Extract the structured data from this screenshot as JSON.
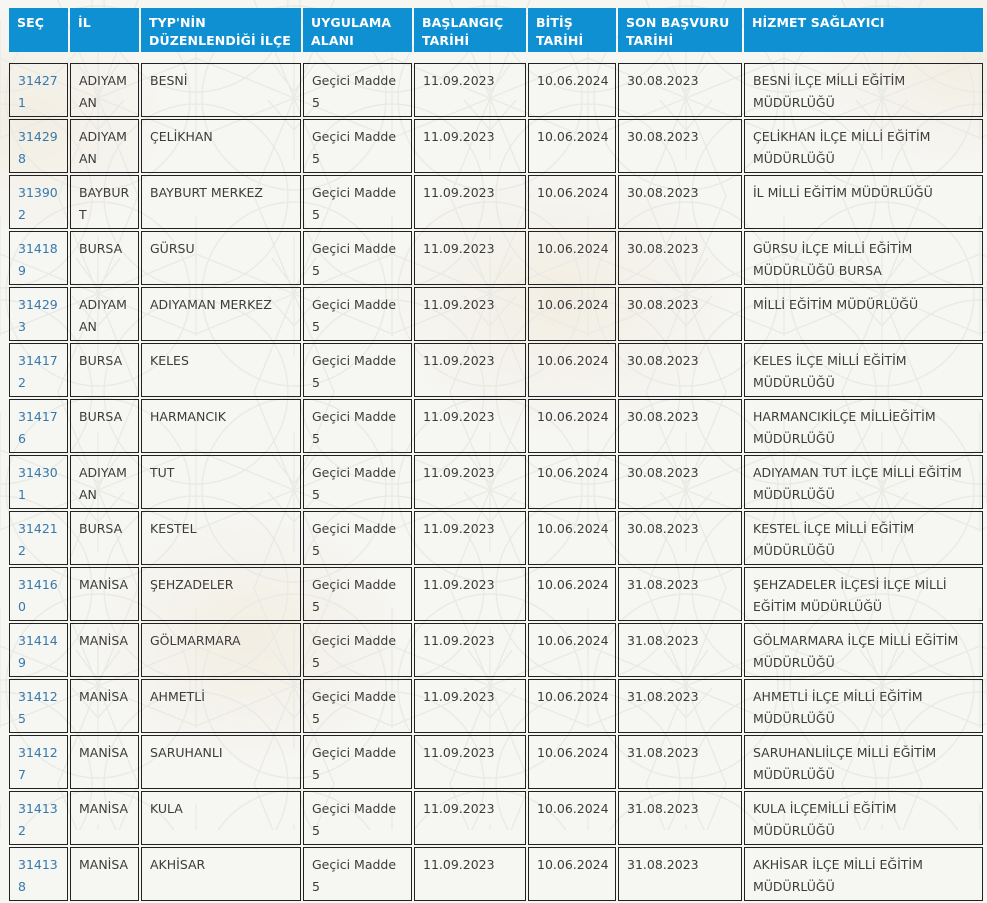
{
  "table": {
    "columns": [
      {
        "key": "sec",
        "label": "SEÇ"
      },
      {
        "key": "il",
        "label": "İL"
      },
      {
        "key": "ilce",
        "label": "TYP'NİN DÜZENLENDİĞİ İLÇE"
      },
      {
        "key": "alan",
        "label": "UYGULAMA ALANI"
      },
      {
        "key": "baslangic",
        "label": "BAŞLANGIÇ TARİHİ"
      },
      {
        "key": "bitis",
        "label": "BİTİŞ TARİHİ"
      },
      {
        "key": "son_basvuru",
        "label": "SON BAŞVURU TARİHİ"
      },
      {
        "key": "hizmet",
        "label": "HİZMET SAĞLAYICI"
      }
    ],
    "rows": [
      {
        "sec": "314271",
        "il": "ADIYAMAN",
        "ilce": "BESNİ",
        "alan": "Geçici Madde 5",
        "baslangic": "11.09.2023",
        "bitis": "10.06.2024",
        "son_basvuru": "30.08.2023",
        "hizmet": "BESNİ İLÇE MİLLİ EĞİTİM MÜDÜRLÜĞÜ"
      },
      {
        "sec": "314298",
        "il": "ADIYAMAN",
        "ilce": "ÇELİKHAN",
        "alan": "Geçici Madde 5",
        "baslangic": "11.09.2023",
        "bitis": "10.06.2024",
        "son_basvuru": "30.08.2023",
        "hizmet": "ÇELİKHAN İLÇE MİLLİ EĞİTİM MÜDÜRLÜĞÜ"
      },
      {
        "sec": "313902",
        "il": "BAYBURT",
        "ilce": "BAYBURT MERKEZ",
        "alan": "Geçici Madde 5",
        "baslangic": "11.09.2023",
        "bitis": "10.06.2024",
        "son_basvuru": "30.08.2023",
        "hizmet": "İL MİLLİ EĞİTİM MÜDÜRLÜĞÜ"
      },
      {
        "sec": "314189",
        "il": "BURSA",
        "ilce": "GÜRSU",
        "alan": "Geçici Madde 5",
        "baslangic": "11.09.2023",
        "bitis": "10.06.2024",
        "son_basvuru": "30.08.2023",
        "hizmet": "GÜRSU İLÇE MİLLİ EĞİTİM MÜDÜRLÜĞÜ BURSA"
      },
      {
        "sec": "314293",
        "il": "ADIYAMAN",
        "ilce": "ADIYAMAN MERKEZ",
        "alan": "Geçici Madde 5",
        "baslangic": "11.09.2023",
        "bitis": "10.06.2024",
        "son_basvuru": "30.08.2023",
        "hizmet": "MİLLİ EĞİTİM MÜDÜRLÜĞÜ"
      },
      {
        "sec": "314172",
        "il": "BURSA",
        "ilce": "KELES",
        "alan": "Geçici Madde 5",
        "baslangic": "11.09.2023",
        "bitis": "10.06.2024",
        "son_basvuru": "30.08.2023",
        "hizmet": "KELES İLÇE MİLLİ EĞİTİM MÜDÜRLÜĞÜ"
      },
      {
        "sec": "314176",
        "il": "BURSA",
        "ilce": "HARMANCIK",
        "alan": "Geçici Madde 5",
        "baslangic": "11.09.2023",
        "bitis": "10.06.2024",
        "son_basvuru": "30.08.2023",
        "hizmet": "HARMANCIKİLÇE MİLLİEĞİTİM MÜDÜRLÜĞÜ"
      },
      {
        "sec": "314301",
        "il": "ADIYAMAN",
        "ilce": "TUT",
        "alan": "Geçici Madde 5",
        "baslangic": "11.09.2023",
        "bitis": "10.06.2024",
        "son_basvuru": "30.08.2023",
        "hizmet": "ADIYAMAN TUT İLÇE MİLLİ EĞİTİM MÜDÜRLÜĞÜ"
      },
      {
        "sec": "314212",
        "il": "BURSA",
        "ilce": "KESTEL",
        "alan": "Geçici Madde 5",
        "baslangic": "11.09.2023",
        "bitis": "10.06.2024",
        "son_basvuru": "30.08.2023",
        "hizmet": "KESTEL İLÇE MİLLİ EĞİTİM MÜDÜRLÜĞÜ"
      },
      {
        "sec": "314160",
        "il": "MANİSA",
        "ilce": "ŞEHZADELER",
        "alan": "Geçici Madde 5",
        "baslangic": "11.09.2023",
        "bitis": "10.06.2024",
        "son_basvuru": "31.08.2023",
        "hizmet": "ŞEHZADELER İLÇESİ İLÇE MİLLİ EĞİTİM MÜDÜRLÜĞÜ"
      },
      {
        "sec": "314149",
        "il": "MANİSA",
        "ilce": "GÖLMARMARA",
        "alan": "Geçici Madde 5",
        "baslangic": "11.09.2023",
        "bitis": "10.06.2024",
        "son_basvuru": "31.08.2023",
        "hizmet": "GÖLMARMARA İLÇE MİLLİ EĞİTİM MÜDÜRLÜĞÜ"
      },
      {
        "sec": "314125",
        "il": "MANİSA",
        "ilce": "AHMETLİ",
        "alan": "Geçici Madde 5",
        "baslangic": "11.09.2023",
        "bitis": "10.06.2024",
        "son_basvuru": "31.08.2023",
        "hizmet": "AHMETLİ İLÇE MİLLİ EĞİTİM MÜDÜRLÜĞÜ"
      },
      {
        "sec": "314127",
        "il": "MANİSA",
        "ilce": "SARUHANLI",
        "alan": "Geçici Madde 5",
        "baslangic": "11.09.2023",
        "bitis": "10.06.2024",
        "son_basvuru": "31.08.2023",
        "hizmet": "SARUHANLIİLÇE MİLLİ EĞİTİM MÜDÜRLÜĞÜ"
      },
      {
        "sec": "314132",
        "il": "MANİSA",
        "ilce": "KULA",
        "alan": "Geçici Madde 5",
        "baslangic": "11.09.2023",
        "bitis": "10.06.2024",
        "son_basvuru": "31.08.2023",
        "hizmet": "KULA İLÇEMİLLİ EĞİTİM MÜDÜRLÜĞÜ"
      },
      {
        "sec": "314138",
        "il": "MANİSA",
        "ilce": "AKHİSAR",
        "alan": "Geçici Madde 5",
        "baslangic": "11.09.2023",
        "bitis": "10.06.2024",
        "son_basvuru": "31.08.2023",
        "hizmet": "AKHİSAR İLÇE MİLLİ EĞİTİM MÜDÜRLÜĞÜ"
      }
    ]
  },
  "colors": {
    "header_bg": "#0f90d2",
    "header_text": "#ffffff",
    "link": "#3879ab",
    "cell_border": "#222222",
    "cell_text": "#3c3c3c",
    "page_bg": "#f6f6f3",
    "watermark_line": "#eaeae5"
  }
}
